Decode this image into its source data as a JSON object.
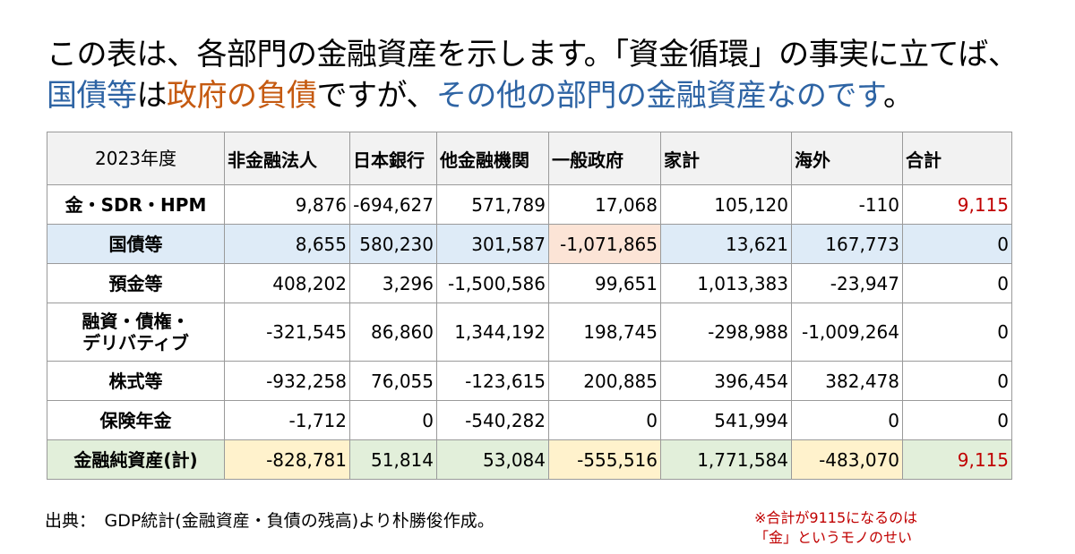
{
  "title": {
    "line1": "この表は、各部門の金融資産を示します。「資金循環」の事実に立てば、",
    "line2_a": "国債等",
    "line2_b": "は",
    "line2_c": "政府の負債",
    "line2_d": "ですが、",
    "line2_e": "その他の部門の金融資産なのです",
    "line2_f": "。"
  },
  "table": {
    "header": [
      "2023年度",
      "非金融法人",
      "日本銀行",
      "他金融機関",
      "一般政府",
      "家計",
      "海外",
      "合計"
    ],
    "rows": [
      {
        "label": "金・SDR・HPM",
        "values": [
          "9,876",
          "-694,627",
          "571,789",
          "17,068",
          "105,120",
          "-110",
          "9,115"
        ]
      },
      {
        "label": "国債等",
        "values": [
          "8,655",
          "580,230",
          "301,587",
          "-1,071,865",
          "13,621",
          "167,773",
          "0"
        ]
      },
      {
        "label": "預金等",
        "values": [
          "408,202",
          "3,296",
          "-1,500,586",
          "99,651",
          "1,013,383",
          "-23,947",
          "0"
        ]
      },
      {
        "label_line1": "融資・債権・",
        "label_line2": "デリバティブ",
        "values": [
          "-321,545",
          "86,860",
          "1,344,192",
          "198,745",
          "-298,988",
          "-1,009,264",
          "0"
        ]
      },
      {
        "label": "株式等",
        "values": [
          "-932,258",
          "76,055",
          "-123,615",
          "200,885",
          "396,454",
          "382,478",
          "0"
        ]
      },
      {
        "label": "保険年金",
        "values": [
          "-1,712",
          "0",
          "-540,282",
          "0",
          "541,994",
          "0",
          "0"
        ]
      },
      {
        "label": "金融純資産(計)",
        "values": [
          "-828,781",
          "51,814",
          "53,084",
          "-555,516",
          "1,771,584",
          "-483,070",
          "9,115"
        ]
      }
    ]
  },
  "source": "出典：　GDP統計(金融資産・負債の残高)より朴勝俊作成。",
  "note": {
    "line1": "※合計が9115になるのは",
    "line2": "「金」というモノのせい"
  },
  "colors": {
    "title_blue": "#2e64a4",
    "title_orange": "#c55a11",
    "red_text": "#c00000",
    "row_blue": "#deebf7",
    "row_green": "#e2efda",
    "cell_peach": "#fce4d6",
    "cell_yellow": "#fff2cc",
    "header_bg": "#f2f2f2"
  }
}
